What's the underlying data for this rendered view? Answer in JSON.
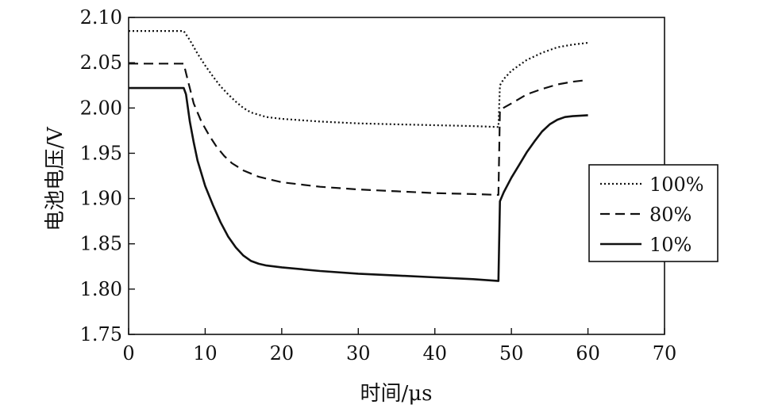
{
  "chart_data": {
    "type": "line",
    "title": "",
    "xlabel": "时间/μs",
    "ylabel": "电池电压/V",
    "xlim": [
      0,
      70
    ],
    "ylim": [
      1.75,
      2.1
    ],
    "xticks": [
      "0",
      "10",
      "20",
      "30",
      "40",
      "50",
      "60",
      "70"
    ],
    "yticks": [
      "1.75",
      "1.80",
      "1.85",
      "1.90",
      "1.95",
      "2.00",
      "2.05",
      "2.10"
    ],
    "grid": false,
    "legend_position": "right",
    "series": [
      {
        "name": "100%",
        "style": "dotted",
        "color": "#111111",
        "points": [
          [
            0,
            2.085
          ],
          [
            7.2,
            2.085
          ],
          [
            8,
            2.075
          ],
          [
            9,
            2.06
          ],
          [
            10,
            2.047
          ],
          [
            11,
            2.035
          ],
          [
            12,
            2.024
          ],
          [
            13,
            2.015
          ],
          [
            14,
            2.007
          ],
          [
            15,
            2.0
          ],
          [
            16,
            1.995
          ],
          [
            18,
            1.99
          ],
          [
            20,
            1.988
          ],
          [
            25,
            1.985
          ],
          [
            30,
            1.983
          ],
          [
            35,
            1.982
          ],
          [
            40,
            1.981
          ],
          [
            45,
            1.98
          ],
          [
            48.3,
            1.979
          ],
          [
            48.5,
            2.025
          ],
          [
            49,
            2.032
          ],
          [
            50,
            2.041
          ],
          [
            52,
            2.053
          ],
          [
            54,
            2.061
          ],
          [
            56,
            2.067
          ],
          [
            58,
            2.07
          ],
          [
            60,
            2.072
          ]
        ]
      },
      {
        "name": "80%",
        "style": "dashed",
        "color": "#111111",
        "points": [
          [
            0,
            2.049
          ],
          [
            7.2,
            2.049
          ],
          [
            7.6,
            2.035
          ],
          [
            8.5,
            2.005
          ],
          [
            9.5,
            1.985
          ],
          [
            10.5,
            1.97
          ],
          [
            11.5,
            1.957
          ],
          [
            12.5,
            1.947
          ],
          [
            13.5,
            1.939
          ],
          [
            15,
            1.931
          ],
          [
            17,
            1.924
          ],
          [
            20,
            1.918
          ],
          [
            25,
            1.913
          ],
          [
            30,
            1.91
          ],
          [
            35,
            1.908
          ],
          [
            40,
            1.906
          ],
          [
            45,
            1.905
          ],
          [
            48.3,
            1.904
          ],
          [
            48.5,
            1.998
          ],
          [
            50,
            2.005
          ],
          [
            52,
            2.015
          ],
          [
            54,
            2.021
          ],
          [
            56,
            2.026
          ],
          [
            58,
            2.029
          ],
          [
            60,
            2.031
          ]
        ]
      },
      {
        "name": "10%",
        "style": "solid",
        "color": "#111111",
        "points": [
          [
            0,
            2.022
          ],
          [
            7.2,
            2.022
          ],
          [
            7.5,
            2.015
          ],
          [
            8,
            1.985
          ],
          [
            8.5,
            1.962
          ],
          [
            9,
            1.942
          ],
          [
            10,
            1.914
          ],
          [
            11,
            1.893
          ],
          [
            12,
            1.874
          ],
          [
            13,
            1.858
          ],
          [
            14,
            1.846
          ],
          [
            15,
            1.837
          ],
          [
            16,
            1.831
          ],
          [
            17,
            1.828
          ],
          [
            18,
            1.826
          ],
          [
            20,
            1.824
          ],
          [
            25,
            1.82
          ],
          [
            30,
            1.817
          ],
          [
            35,
            1.815
          ],
          [
            40,
            1.813
          ],
          [
            45,
            1.811
          ],
          [
            48.3,
            1.809
          ],
          [
            48.5,
            1.897
          ],
          [
            49,
            1.907
          ],
          [
            50,
            1.923
          ],
          [
            51,
            1.937
          ],
          [
            52,
            1.951
          ],
          [
            53,
            1.963
          ],
          [
            54,
            1.974
          ],
          [
            55,
            1.982
          ],
          [
            56,
            1.987
          ],
          [
            57,
            1.99
          ],
          [
            58,
            1.991
          ],
          [
            60,
            1.992
          ]
        ]
      }
    ]
  }
}
